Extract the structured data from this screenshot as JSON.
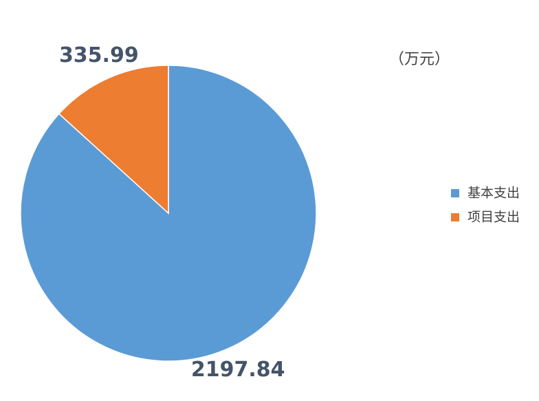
{
  "chart_data": {
    "type": "pie",
    "unit": "（万元）",
    "categories": [
      "基本支出",
      "项目支出"
    ],
    "values": [
      2197.84,
      335.99
    ],
    "colors": [
      "#5b9bd5",
      "#ed7d31"
    ]
  }
}
